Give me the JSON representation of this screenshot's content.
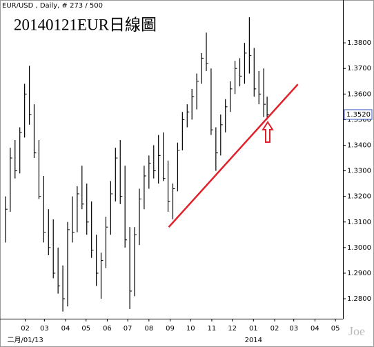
{
  "chart_data": {
    "type": "ohlc",
    "header": "EUR/USD , Daily, # 273 / 500",
    "title": "20140121EUR日線圖",
    "watermark": "Joe",
    "color": "#000000",
    "x": [
      2,
      9,
      16,
      23,
      30,
      37,
      44,
      51,
      58,
      65,
      72,
      79,
      86,
      93,
      100,
      107,
      114,
      121,
      128,
      135,
      142,
      149,
      156,
      163,
      170,
      177,
      184,
      191,
      198,
      205,
      212,
      219,
      226,
      233,
      240,
      247,
      254,
      261,
      268,
      275,
      282,
      289,
      296,
      303,
      310,
      317,
      324,
      331,
      338,
      345,
      352,
      359,
      366,
      373,
      380,
      385
    ],
    "high": [
      1.32,
      1.339,
      1.342,
      1.347,
      1.364,
      1.371,
      1.356,
      1.342,
      1.328,
      1.315,
      1.311,
      1.3,
      1.293,
      1.31,
      1.32,
      1.324,
      1.332,
      1.325,
      1.318,
      1.305,
      1.298,
      1.312,
      1.326,
      1.339,
      1.342,
      1.332,
      1.308,
      1.308,
      1.323,
      1.332,
      1.336,
      1.34,
      1.344,
      1.345,
      1.334,
      1.325,
      1.341,
      1.353,
      1.356,
      1.362,
      1.368,
      1.376,
      1.384,
      1.37,
      1.347,
      1.352,
      1.358,
      1.365,
      1.373,
      1.374,
      1.38,
      1.39,
      1.378,
      1.369,
      1.37,
      1.359
    ],
    "low": [
      1.302,
      1.314,
      1.327,
      1.329,
      1.343,
      1.348,
      1.335,
      1.319,
      1.302,
      1.297,
      1.288,
      1.282,
      1.275,
      1.277,
      1.302,
      1.306,
      1.315,
      1.305,
      1.296,
      1.285,
      1.28,
      1.292,
      1.305,
      1.318,
      1.317,
      1.3,
      1.276,
      1.281,
      1.301,
      1.315,
      1.323,
      1.327,
      1.325,
      1.326,
      1.314,
      1.311,
      1.322,
      1.338,
      1.347,
      1.35,
      1.354,
      1.364,
      1.369,
      1.344,
      1.33,
      1.336,
      1.345,
      1.353,
      1.36,
      1.363,
      1.364,
      1.368,
      1.359,
      1.356,
      1.351,
      1.35
    ],
    "close": [
      1.315,
      1.335,
      1.33,
      1.345,
      1.36,
      1.352,
      1.337,
      1.32,
      1.306,
      1.3,
      1.29,
      1.285,
      1.28,
      1.307,
      1.306,
      1.321,
      1.317,
      1.31,
      1.299,
      1.29,
      1.295,
      1.308,
      1.321,
      1.335,
      1.32,
      1.303,
      1.283,
      1.305,
      1.319,
      1.328,
      1.333,
      1.33,
      1.336,
      1.327,
      1.318,
      1.323,
      1.338,
      1.35,
      1.353,
      1.359,
      1.365,
      1.374,
      1.372,
      1.346,
      1.337,
      1.348,
      1.355,
      1.362,
      1.37,
      1.367,
      1.376,
      1.375,
      1.362,
      1.36,
      1.356,
      1.352
    ],
    "xlim": [
      -6,
      496
    ],
    "ylim": [
      1.2722,
      1.3927
    ],
    "xticks": [
      {
        "value": 31,
        "label": "02"
      },
      {
        "value": 59,
        "label": "03"
      },
      {
        "value": 90,
        "label": "04"
      },
      {
        "value": 120,
        "label": "05"
      },
      {
        "value": 151,
        "label": "06"
      },
      {
        "value": 181,
        "label": "07"
      },
      {
        "value": 212,
        "label": "08"
      },
      {
        "value": 243,
        "label": "09"
      },
      {
        "value": 273,
        "label": "10"
      },
      {
        "value": 304,
        "label": "11"
      },
      {
        "value": 334,
        "label": "12"
      },
      {
        "value": 365,
        "label": "01"
      },
      {
        "value": 396,
        "label": "02"
      },
      {
        "value": 424,
        "label": "03"
      },
      {
        "value": 455,
        "label": "04"
      },
      {
        "value": 485,
        "label": "05"
      }
    ],
    "x_sublabels": [
      {
        "value": 31,
        "label": "二月/01/13"
      },
      {
        "value": 365,
        "label": "2014"
      }
    ],
    "yticks": [
      {
        "value": 1.28,
        "label": "1.2800"
      },
      {
        "value": 1.29,
        "label": "1.2900"
      },
      {
        "value": 1.3,
        "label": "1.3000"
      },
      {
        "value": 1.31,
        "label": "1.3100"
      },
      {
        "value": 1.32,
        "label": "1.3200"
      },
      {
        "value": 1.33,
        "label": "1.3300"
      },
      {
        "value": 1.34,
        "label": "1.3400"
      },
      {
        "value": 1.35,
        "label": "1.3500"
      },
      {
        "value": 1.36,
        "label": "1.3600"
      },
      {
        "value": 1.37,
        "label": "1.3700"
      },
      {
        "value": 1.38,
        "label": "1.3800"
      }
    ],
    "last_price": {
      "value": 1.352,
      "label": "1.3520"
    },
    "trendline": {
      "x": [
        241,
        430
      ],
      "y": [
        1.308,
        1.3638
      ],
      "color": "#e0202a"
    }
  }
}
